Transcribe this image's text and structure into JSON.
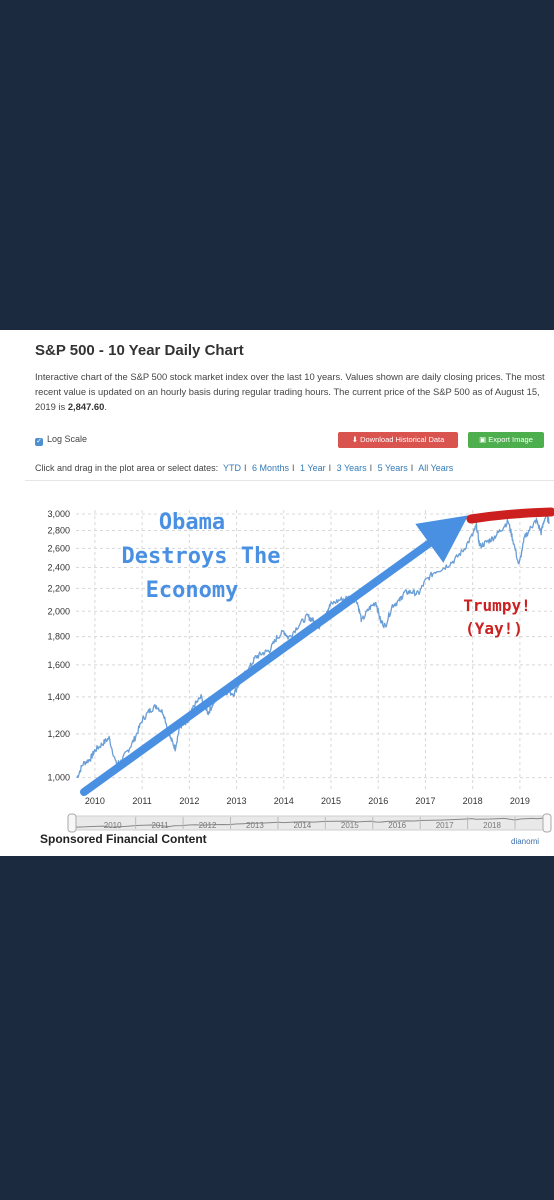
{
  "header": {
    "title": "S&P 500 - 10 Year Daily Chart",
    "desc_main": "Interactive chart of the S&P 500 stock market index over the last 10 years. Values shown are daily closing prices. The most recent value is updated on an hourly basis during regular trading hours. The current price of the S&P 500 as of August 15, 2019 is ",
    "desc_price": "2,847.60",
    "desc_end": "."
  },
  "controls": {
    "log_scale_label": "Log Scale",
    "log_scale_checked": true,
    "download_label": "Download Historical Data",
    "export_label": "Export Image",
    "date_prompt": "Click and drag in the plot area or select dates:",
    "ranges": [
      "YTD",
      "6 Months",
      "1 Year",
      "3 Years",
      "5 Years",
      "All Years"
    ]
  },
  "annotations": {
    "obama": [
      "Obama",
      "Destroys The",
      "Economy"
    ],
    "trumpy": [
      "Trumpy!",
      "(Yay!)"
    ],
    "arrow_color": "#4a90e2",
    "trumpy_color": "#cc1f1f"
  },
  "footer": {
    "sponsored": "Sponsored Financial Content",
    "brand": "dianomi"
  },
  "colors": {
    "line": "#6a9ed6",
    "background": "#1b2a3e"
  },
  "chart_data": {
    "type": "line",
    "scale": "log",
    "title": "",
    "xlabel": "",
    "ylabel": "",
    "ylim": [
      950,
      3050
    ],
    "xlim": [
      2009.6,
      2019.68
    ],
    "y_ticks": [
      1000,
      1200,
      1400,
      1600,
      1800,
      2000,
      2200,
      2400,
      2600,
      2800,
      3000
    ],
    "y_tick_labels": [
      "1,000",
      "1,200",
      "1,400",
      "1,600",
      "1,800",
      "2,000",
      "2,200",
      "2,400",
      "2,600",
      "2,800",
      "3,000"
    ],
    "x_ticks": [
      2010,
      2011,
      2012,
      2013,
      2014,
      2015,
      2016,
      2017,
      2018,
      2019
    ],
    "x_tick_labels": [
      "2010",
      "2011",
      "2012",
      "2013",
      "2014",
      "2015",
      "2016",
      "2017",
      "2018",
      "2019"
    ],
    "navigator_labels": [
      "2010",
      "2011",
      "2012",
      "2013",
      "2014",
      "2015",
      "2016",
      "2017",
      "2018"
    ],
    "grid": true,
    "legend": "none",
    "series": [
      {
        "x": [
          2009.62,
          2009.75,
          2009.9,
          2010.0,
          2010.15,
          2010.3,
          2010.45,
          2010.55,
          2010.7,
          2010.85,
          2011.0,
          2011.15,
          2011.3,
          2011.45,
          2011.6,
          2011.7,
          2011.8,
          2011.95,
          2012.1,
          2012.25,
          2012.4,
          2012.5,
          2012.65,
          2012.8,
          2012.95,
          2013.1,
          2013.25,
          2013.4,
          2013.55,
          2013.7,
          2013.85,
          2014.0,
          2014.1,
          2014.3,
          2014.5,
          2014.6,
          2014.75,
          2014.9,
          2015.0,
          2015.2,
          2015.4,
          2015.55,
          2015.65,
          2015.8,
          2015.95,
          2016.05,
          2016.15,
          2016.3,
          2016.45,
          2016.55,
          2016.7,
          2016.85,
          2017.0,
          2017.2,
          2017.4,
          2017.6,
          2017.8,
          2018.0,
          2018.08,
          2018.15,
          2018.3,
          2018.45,
          2018.6,
          2018.75,
          2018.85,
          2018.98,
          2019.1,
          2019.25,
          2019.35,
          2019.45,
          2019.55,
          2019.62
        ],
        "y": [
          1000,
          1060,
          1080,
          1120,
          1150,
          1180,
          1060,
          1070,
          1120,
          1180,
          1270,
          1320,
          1350,
          1310,
          1180,
          1130,
          1240,
          1250,
          1350,
          1400,
          1310,
          1360,
          1420,
          1430,
          1420,
          1510,
          1570,
          1650,
          1680,
          1700,
          1790,
          1840,
          1790,
          1880,
          1960,
          1930,
          1880,
          2000,
          2060,
          2100,
          2120,
          2090,
          1920,
          2020,
          2080,
          1920,
          1880,
          2050,
          2090,
          2160,
          2170,
          2150,
          2270,
          2360,
          2400,
          2470,
          2580,
          2750,
          2860,
          2620,
          2670,
          2720,
          2810,
          2910,
          2700,
          2420,
          2720,
          2850,
          2920,
          2780,
          2990,
          2900
        ]
      }
    ]
  }
}
